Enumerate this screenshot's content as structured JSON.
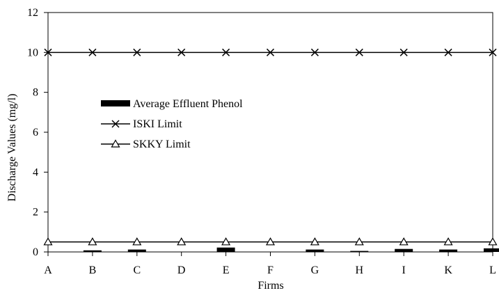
{
  "chart_data": {
    "type": "bar",
    "title": "",
    "xlabel": "Firms",
    "ylabel": "Discharge Values (mg/l)",
    "categories": [
      "A",
      "B",
      "C",
      "D",
      "E",
      "F",
      "G",
      "H",
      "I",
      "K",
      "L"
    ],
    "ylim": [
      0,
      12
    ],
    "yticks": [
      "0",
      "2",
      "4",
      "6",
      "8",
      "10",
      "12"
    ],
    "grid": false,
    "legend_position": "upper-left inside plot",
    "series": [
      {
        "name": "Average Effluent Phenol",
        "kind": "bar",
        "marker": "filled-bar",
        "color": "#000000",
        "values": [
          0.0,
          0.08,
          0.12,
          0.0,
          0.22,
          0.0,
          0.12,
          0.05,
          0.15,
          0.12,
          0.18
        ]
      },
      {
        "name": "ISKI Limit",
        "kind": "line",
        "marker": "x",
        "color": "#000000",
        "values": [
          10,
          10,
          10,
          10,
          10,
          10,
          10,
          10,
          10,
          10,
          10
        ]
      },
      {
        "name": "SKKY Limit",
        "kind": "line",
        "marker": "triangle-open",
        "color": "#000000",
        "values": [
          0.5,
          0.5,
          0.5,
          0.5,
          0.5,
          0.5,
          0.5,
          0.5,
          0.5,
          0.5,
          0.5
        ]
      }
    ]
  }
}
